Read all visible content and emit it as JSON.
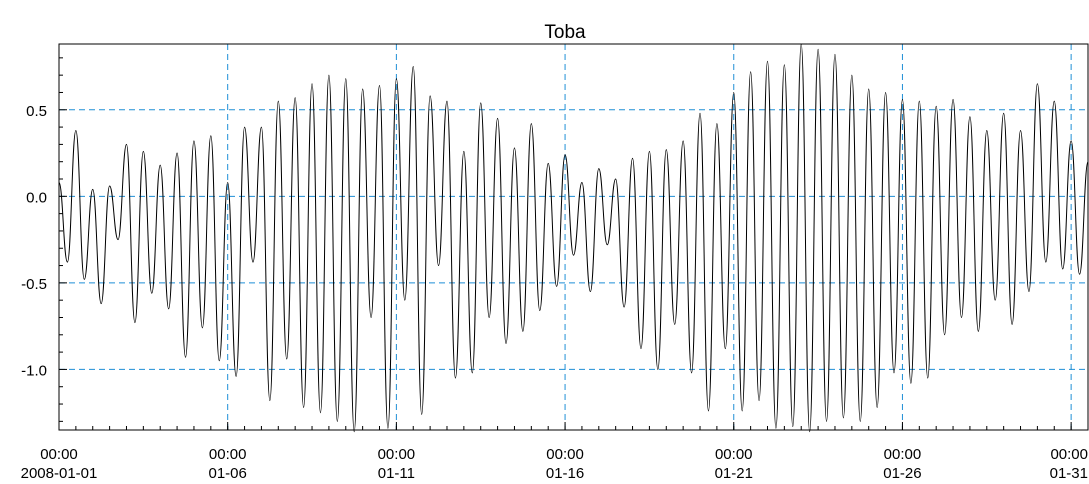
{
  "chart_data": {
    "type": "line",
    "title": "Toba",
    "xlabel": "",
    "ylabel": "",
    "y_ticks": [
      {
        "value": 0.5,
        "label": "0.5"
      },
      {
        "value": 0.0,
        "label": "0.0"
      },
      {
        "value": -0.5,
        "label": "-0.5"
      },
      {
        "value": -1.0,
        "label": "-1.0"
      }
    ],
    "x_ticks": [
      {
        "date": "2008-01-01T00:00",
        "time": "00:00",
        "date_label": "2008-01-01"
      },
      {
        "date": "2008-01-06T00:00",
        "time": "00:00",
        "date_label": "01-06"
      },
      {
        "date": "2008-01-11T00:00",
        "time": "00:00",
        "date_label": "01-11"
      },
      {
        "date": "2008-01-16T00:00",
        "time": "00:00",
        "date_label": "01-16"
      },
      {
        "date": "2008-01-21T00:00",
        "time": "00:00",
        "date_label": "01-21"
      },
      {
        "date": "2008-01-26T00:00",
        "time": "00:00",
        "date_label": "01-26"
      },
      {
        "date": "2008-01-31T00:00",
        "time": "00:00",
        "date_label": "01-31"
      }
    ],
    "xlim": [
      "2008-01-01T00:00",
      "2008-01-31T12:00"
    ],
    "ylim": [
      -1.35,
      0.88
    ],
    "grid": {
      "x": true,
      "y": true,
      "style": "dashed",
      "color": "#1f8fd6"
    },
    "series_color": "#000000",
    "series": [
      {
        "x": [
          "2008-01-01T00:00",
          "2008-01-01T06:00",
          "2008-01-01T12:00",
          "2008-01-01T18:00",
          "2008-01-02T00:00",
          "2008-01-02T06:00",
          "2008-01-02T12:00",
          "2008-01-02T18:00",
          "2008-01-03T00:00",
          "2008-01-03T06:00",
          "2008-01-03T12:00",
          "2008-01-03T18:00",
          "2008-01-04T00:00",
          "2008-01-04T06:00",
          "2008-01-04T12:00",
          "2008-01-04T18:00",
          "2008-01-05T00:00",
          "2008-01-05T06:00",
          "2008-01-05T12:00",
          "2008-01-05T18:00",
          "2008-01-06T00:00",
          "2008-01-06T06:00",
          "2008-01-06T12:00",
          "2008-01-06T18:00",
          "2008-01-07T00:00",
          "2008-01-07T06:00",
          "2008-01-07T12:00",
          "2008-01-07T18:00",
          "2008-01-08T00:00",
          "2008-01-08T06:00",
          "2008-01-08T12:00",
          "2008-01-08T18:00",
          "2008-01-09T00:00",
          "2008-01-09T06:00",
          "2008-01-09T12:00",
          "2008-01-09T18:00",
          "2008-01-10T00:00",
          "2008-01-10T06:00",
          "2008-01-10T12:00",
          "2008-01-10T18:00",
          "2008-01-11T00:00",
          "2008-01-11T06:00",
          "2008-01-11T12:00",
          "2008-01-11T18:00",
          "2008-01-12T00:00",
          "2008-01-12T06:00",
          "2008-01-12T12:00",
          "2008-01-12T18:00",
          "2008-01-13T00:00",
          "2008-01-13T06:00",
          "2008-01-13T12:00",
          "2008-01-13T18:00",
          "2008-01-14T00:00",
          "2008-01-14T06:00",
          "2008-01-14T12:00",
          "2008-01-14T18:00",
          "2008-01-15T00:00",
          "2008-01-15T06:00",
          "2008-01-15T12:00",
          "2008-01-15T18:00",
          "2008-01-16T00:00",
          "2008-01-16T06:00",
          "2008-01-16T12:00",
          "2008-01-16T18:00",
          "2008-01-17T00:00",
          "2008-01-17T06:00",
          "2008-01-17T12:00",
          "2008-01-17T18:00",
          "2008-01-18T00:00",
          "2008-01-18T06:00",
          "2008-01-18T12:00",
          "2008-01-18T18:00",
          "2008-01-19T00:00",
          "2008-01-19T06:00",
          "2008-01-19T12:00",
          "2008-01-19T18:00",
          "2008-01-20T00:00",
          "2008-01-20T06:00",
          "2008-01-20T12:00",
          "2008-01-20T18:00",
          "2008-01-21T00:00",
          "2008-01-21T06:00",
          "2008-01-21T12:00",
          "2008-01-21T18:00",
          "2008-01-22T00:00",
          "2008-01-22T06:00",
          "2008-01-22T12:00",
          "2008-01-22T18:00",
          "2008-01-23T00:00",
          "2008-01-23T06:00",
          "2008-01-23T12:00",
          "2008-01-23T18:00",
          "2008-01-24T00:00",
          "2008-01-24T06:00",
          "2008-01-24T12:00",
          "2008-01-24T18:00",
          "2008-01-25T00:00",
          "2008-01-25T06:00",
          "2008-01-25T12:00",
          "2008-01-25T18:00",
          "2008-01-26T00:00",
          "2008-01-26T06:00",
          "2008-01-26T12:00",
          "2008-01-26T18:00",
          "2008-01-27T00:00",
          "2008-01-27T06:00",
          "2008-01-27T12:00",
          "2008-01-27T18:00",
          "2008-01-28T00:00",
          "2008-01-28T06:00",
          "2008-01-28T12:00",
          "2008-01-28T18:00",
          "2008-01-29T00:00",
          "2008-01-29T06:00",
          "2008-01-29T12:00",
          "2008-01-29T18:00",
          "2008-01-30T00:00",
          "2008-01-30T06:00",
          "2008-01-30T12:00",
          "2008-01-30T18:00",
          "2008-01-31T00:00",
          "2008-01-31T06:00",
          "2008-01-31T12:00"
        ],
        "y": [
          0.08,
          -0.38,
          0.38,
          -0.48,
          0.04,
          -0.62,
          0.06,
          -0.25,
          0.3,
          -0.73,
          0.26,
          -0.56,
          0.18,
          -0.65,
          0.25,
          -0.93,
          0.32,
          -0.76,
          0.35,
          -0.95,
          0.08,
          -1.04,
          0.4,
          -0.38,
          0.4,
          -1.18,
          0.55,
          -0.94,
          0.57,
          -1.22,
          0.65,
          -1.25,
          0.7,
          -1.3,
          0.68,
          -1.36,
          0.62,
          -0.7,
          0.64,
          -1.34,
          0.68,
          -0.6,
          0.75,
          -1.26,
          0.58,
          -0.4,
          0.55,
          -1.05,
          0.26,
          -1.02,
          0.54,
          -0.7,
          0.45,
          -0.85,
          0.28,
          -0.78,
          0.42,
          -0.66,
          0.19,
          -0.52,
          0.24,
          -0.34,
          0.08,
          -0.55,
          0.16,
          -0.28,
          0.1,
          -0.64,
          0.22,
          -0.88,
          0.26,
          -1.0,
          0.27,
          -0.74,
          0.32,
          -1.02,
          0.48,
          -1.24,
          0.42,
          -0.88,
          0.6,
          -1.24,
          0.72,
          -1.18,
          0.78,
          -1.34,
          0.76,
          -1.33,
          0.88,
          -1.36,
          0.85,
          -1.3,
          0.82,
          -1.28,
          0.7,
          -1.3,
          0.62,
          -1.22,
          0.6,
          -1.02,
          0.56,
          -1.08,
          0.55,
          -1.05,
          0.52,
          -0.8,
          0.56,
          -0.7,
          0.46,
          -0.78,
          0.38,
          -0.6,
          0.48,
          -0.74,
          0.38,
          -0.55,
          0.65,
          -0.38,
          0.55,
          -0.42,
          0.32,
          -0.45,
          0.2
        ]
      }
    ]
  }
}
